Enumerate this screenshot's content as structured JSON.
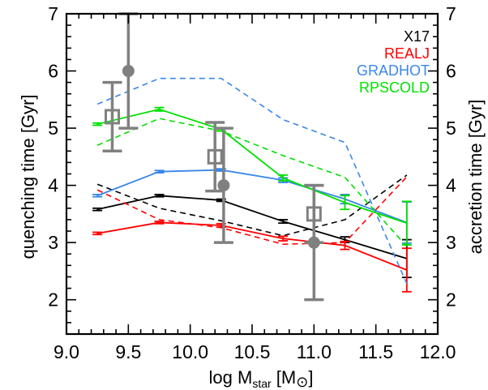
{
  "chart_data": {
    "type": "line",
    "xlabel_main": "log M",
    "xlabel_sub": "star",
    "xlabel_unit_open": " [M",
    "xlabel_unit_sun": "⊙",
    "xlabel_unit_close": "]",
    "ylabel_left": "quenching time [Gyr]",
    "ylabel_right": "accretion time [Gyr]",
    "xlim": [
      9.0,
      12.0
    ],
    "ylim": [
      1.4,
      7.0
    ],
    "xticks": [
      "9.0",
      "9.5",
      "10.0",
      "10.5",
      "11.0",
      "11.5",
      "12.0"
    ],
    "xtick_values": [
      9.0,
      9.5,
      10.0,
      10.5,
      11.0,
      11.5,
      12.0
    ],
    "xminor_step": 0.1,
    "yticks": [
      "2",
      "3",
      "4",
      "5",
      "6",
      "7"
    ],
    "ytick_values": [
      2,
      3,
      4,
      5,
      6,
      7
    ],
    "yminor_step": 0.2,
    "legend": {
      "placement": "top-right"
    },
    "series": [
      {
        "name": "X17",
        "color": "#000000",
        "solid": {
          "x": [
            9.25,
            9.75,
            10.25,
            10.75,
            11.25,
            11.75
          ],
          "y": [
            3.58,
            3.82,
            3.74,
            3.37,
            3.05,
            2.72
          ],
          "err": [
            0.02,
            0.02,
            0.02,
            0.03,
            0.05,
            0.33
          ]
        },
        "dashed": {
          "x": [
            9.25,
            9.75,
            10.25,
            10.75,
            11.25,
            11.75
          ],
          "y": [
            4.02,
            3.6,
            3.38,
            3.12,
            3.4,
            4.18
          ]
        }
      },
      {
        "name": "REALJ",
        "color": "#ff0000",
        "solid": {
          "x": [
            9.25,
            9.75,
            10.25,
            10.75,
            11.25,
            11.75
          ],
          "y": [
            3.16,
            3.35,
            3.3,
            3.07,
            2.95,
            2.52
          ],
          "err": [
            0.02,
            0.02,
            0.03,
            0.04,
            0.07,
            0.38
          ]
        },
        "dashed": {
          "x": [
            9.25,
            9.75,
            10.25,
            10.75,
            11.25,
            11.75
          ],
          "y": [
            3.92,
            3.4,
            3.26,
            2.97,
            3.0,
            4.15
          ]
        }
      },
      {
        "name": "GRADHOT",
        "color": "#3a87e8",
        "solid": {
          "x": [
            9.25,
            9.75,
            10.25,
            10.75,
            11.25,
            11.75
          ],
          "y": [
            3.82,
            4.24,
            4.27,
            4.09,
            3.76,
            3.35
          ],
          "err": [
            0.02,
            0.02,
            0.02,
            0.04,
            0.08,
            0.36
          ]
        },
        "dashed": {
          "x": [
            9.25,
            9.75,
            10.25,
            10.75,
            11.25,
            11.75
          ],
          "y": [
            5.42,
            5.87,
            5.87,
            5.15,
            4.75,
            2.28
          ]
        }
      },
      {
        "name": "RPSCOLD",
        "color": "#00e000",
        "solid": {
          "x": [
            9.25,
            9.75,
            10.25,
            10.75,
            11.25,
            11.75
          ],
          "y": [
            5.07,
            5.33,
            4.98,
            4.13,
            3.7,
            3.34
          ],
          "err": [
            0.02,
            0.03,
            0.03,
            0.05,
            0.12,
            0.38
          ]
        },
        "dashed": {
          "x": [
            9.25,
            9.75,
            10.25,
            10.75,
            11.25,
            11.75
          ],
          "y": [
            4.7,
            5.17,
            4.95,
            4.52,
            4.14,
            2.93
          ]
        }
      }
    ],
    "observations": [
      {
        "marker": "filled-circle",
        "color": "#808080",
        "points": [
          {
            "x": 9.5,
            "y": 6.0,
            "ylo": 5.0,
            "yhi": 7.0
          },
          {
            "x": 10.27,
            "y": 4.0,
            "ylo": 3.0,
            "yhi": 5.0
          },
          {
            "x": 11.0,
            "y": 3.0,
            "ylo": 2.0,
            "yhi": 4.0
          }
        ]
      },
      {
        "marker": "open-square",
        "color": "#808080",
        "points": [
          {
            "x": 9.37,
            "y": 5.2,
            "ylo": 4.6,
            "yhi": 5.8
          },
          {
            "x": 10.2,
            "y": 4.5,
            "ylo": 3.9,
            "yhi": 5.1
          },
          {
            "x": 11.0,
            "y": 3.5,
            "ylo": 3.0,
            "yhi": 4.0
          }
        ]
      }
    ]
  }
}
